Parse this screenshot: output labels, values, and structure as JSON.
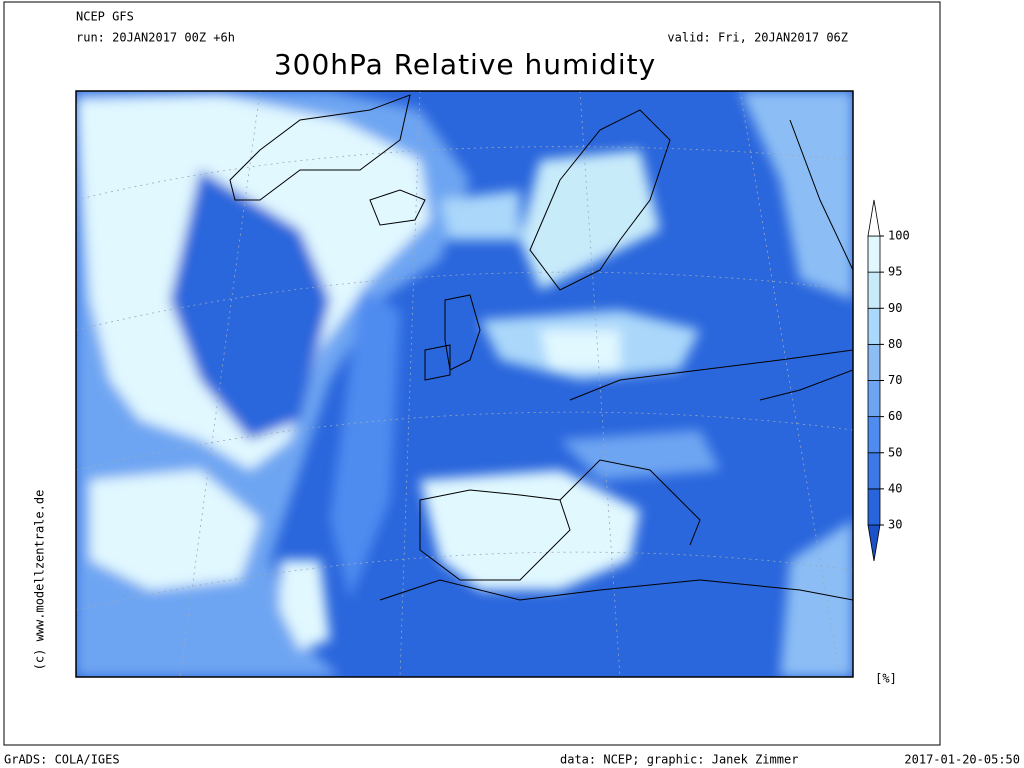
{
  "header": {
    "model": "NCEP GFS",
    "run": "run: 20JAN2017 00Z +6h",
    "valid": "valid: Fri, 20JAN2017 06Z",
    "title": "300hPa Relative humidity"
  },
  "legend": {
    "levels": [
      30,
      40,
      50,
      60,
      70,
      80,
      90,
      95,
      100
    ],
    "colors": [
      "#1c50c8",
      "#2864dc",
      "#3c78e6",
      "#508cf0",
      "#6ea5f2",
      "#8cbef5",
      "#aad7fa",
      "#c8ebfa",
      "#e1f8ff",
      "#ffffff"
    ],
    "unit": "[%]"
  },
  "credits": {
    "copyright": "(c) www.modellzentrale.de",
    "software": "GrADS: COLA/IGES",
    "source": "data: NCEP; graphic: Janek Zimmer",
    "timestamp": "2017-01-20-05:50"
  }
}
